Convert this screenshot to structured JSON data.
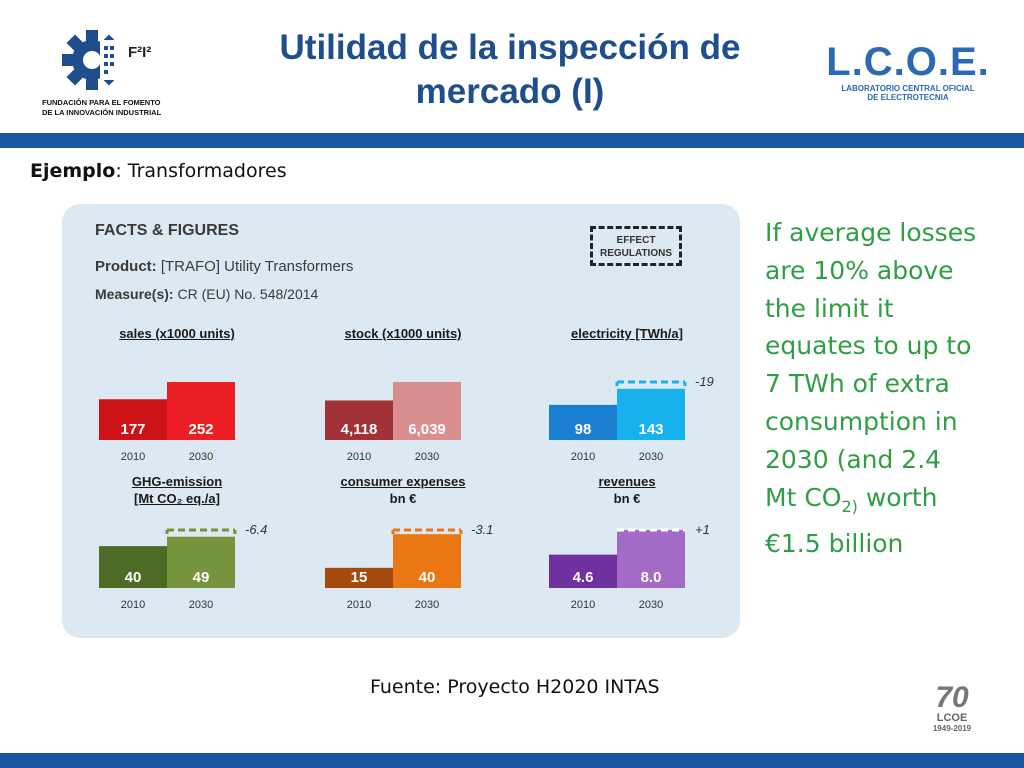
{
  "header": {
    "title_line1": "Utilidad de la inspección de",
    "title_line2": "mercado (I)",
    "left_logo_mark": "F²I²",
    "left_logo_org_line1": "FUNDACIÓN PARA EL FOMENTO",
    "left_logo_org_line2": "DE LA INNOVACIÓN INDUSTRIAL",
    "right_logo_big": "L.C.O.E.",
    "right_logo_sub1": "LABORATORIO CENTRAL OFICIAL",
    "right_logo_sub2": "DE ELECTROTECNIA"
  },
  "example": {
    "label": "Ejemplo",
    "text": ": Transformadores"
  },
  "infographic": {
    "facts_title": "FACTS & FIGURES",
    "product_label": "Product:",
    "product_text": " [TRAFO] Utility Transformers",
    "measure_label": "Measure(s):",
    "measure_text": " CR (EU) No. 548/2014",
    "effect_line1": "EFFECT",
    "effect_line2": "REGULATIONS"
  },
  "chart_data": [
    {
      "type": "bar",
      "title": "sales (x1000 units)",
      "categories": [
        "2010",
        "2030"
      ],
      "values": [
        177,
        252
      ],
      "labels": [
        "177",
        "252"
      ],
      "colors": [
        "#cc1216",
        "#ea1e24"
      ],
      "ylim": [
        0,
        252
      ]
    },
    {
      "type": "bar",
      "title": "stock (x1000 units)",
      "categories": [
        "2010",
        "2030"
      ],
      "values": [
        4118,
        6039
      ],
      "labels": [
        "4,118",
        "6,039"
      ],
      "colors": [
        "#a13238",
        "#d98f8f"
      ],
      "ylim": [
        0,
        6039
      ]
    },
    {
      "type": "bar",
      "title": "electricity [TWh/a]",
      "categories": [
        "2010",
        "2030"
      ],
      "values": [
        98,
        143
      ],
      "labels": [
        "98",
        "143"
      ],
      "colors": [
        "#1a7fd0",
        "#17b1ee"
      ],
      "effect": -19,
      "effect_label": "-19",
      "ylim": [
        0,
        162
      ]
    },
    {
      "type": "bar",
      "title": "GHG-emission",
      "subtitle": "[Mt CO₂ eq./a]",
      "categories": [
        "2010",
        "2030"
      ],
      "values": [
        40,
        49
      ],
      "labels": [
        "40",
        "49"
      ],
      "colors": [
        "#4c6b24",
        "#76943b"
      ],
      "effect": -6.4,
      "effect_label": "-6.4",
      "ylim": [
        0,
        55.4
      ]
    },
    {
      "type": "bar",
      "title": "consumer expenses",
      "subtitle": "bn €",
      "categories": [
        "2010",
        "2030"
      ],
      "values": [
        15,
        40
      ],
      "labels": [
        "15",
        "40"
      ],
      "colors": [
        "#a54a0f",
        "#eb7614"
      ],
      "effect": -3.1,
      "effect_label": "-3.1",
      "ylim": [
        0,
        43.1
      ]
    },
    {
      "type": "bar",
      "title": "revenues",
      "subtitle": "bn €",
      "categories": [
        "2010",
        "2030"
      ],
      "values": [
        4.6,
        8.0
      ],
      "labels": [
        "4.6",
        "8.0"
      ],
      "colors": [
        "#7031a0",
        "#a46bc6"
      ],
      "effect": 1,
      "effect_label": "+1",
      "ylim": [
        0,
        8.0
      ]
    }
  ],
  "right_text": {
    "line1": "If average losses",
    "line2": "are 10% above",
    "line3": "the limit it",
    "line4": "equates to up to",
    "line5": "7 TWh of extra",
    "line6": "consumption in",
    "line7": "2030 (and 2.4",
    "line8_pre": "Mt CO",
    "line8_sub": "2)",
    "line8_post": " worth",
    "line9": "€1.5 billion"
  },
  "source": "Fuente: Proyecto H2020 INTAS",
  "anniversary_logo": {
    "number": "70",
    "org": "LCOE",
    "years": "1949-2019"
  },
  "colors": {
    "brand_blue": "#1a56a1",
    "title_blue": "#1f4e8c",
    "green_text": "#2f9e44",
    "panel_bg": "#dce9f2"
  }
}
